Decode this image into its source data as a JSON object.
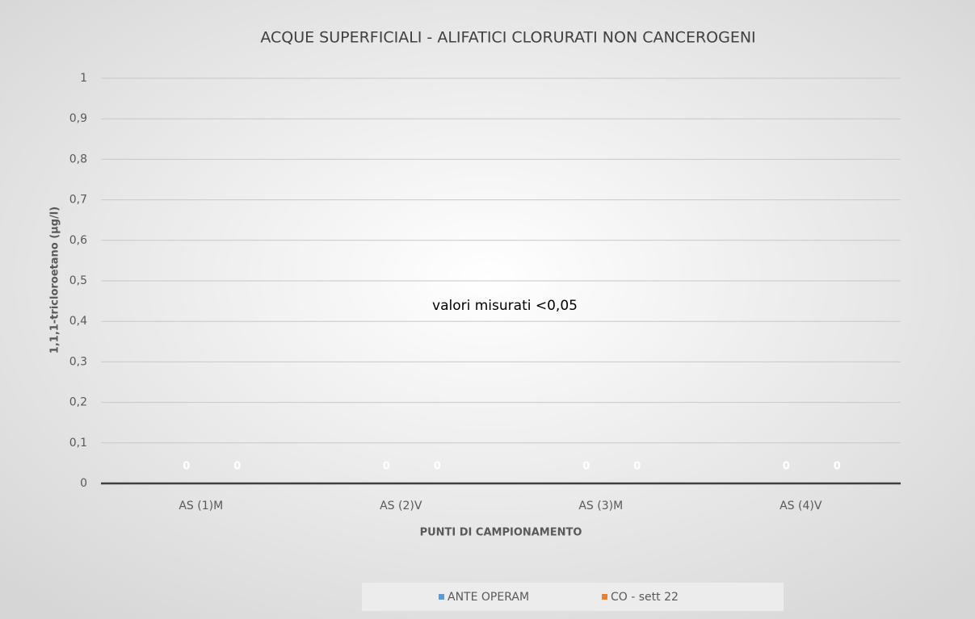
{
  "chart_data": {
    "type": "bar",
    "title": "ACQUE SUPERFICIALI - ALIFATICI CLORURATI NON CANCEROGENI",
    "ylabel": "1,1,1-tricloroetano (µg/l)",
    "xlabel": "PUNTI DI CAMPIONAMENTO",
    "annotation": "valori misurati <0,05",
    "categories": [
      "AS (1)M",
      "AS (2)V",
      "AS (3)M",
      "AS (4)V"
    ],
    "series": [
      {
        "name": "ANTE OPERAM",
        "color": "#5b9bd5",
        "values": [
          0,
          0,
          0,
          0
        ]
      },
      {
        "name": "CO - sett 22",
        "color": "#ed7d31",
        "values": [
          0,
          0,
          0,
          0
        ]
      }
    ],
    "ylim": [
      0,
      1
    ],
    "yticks": [
      0,
      {
        "value": 0.1,
        "label": "0,1"
      },
      {
        "value": 0.2,
        "label": "0,2"
      },
      {
        "value": 0.3,
        "label": "0,3"
      },
      {
        "value": 0.4,
        "label": "0,4"
      },
      {
        "value": 0.5,
        "label": "0,5"
      },
      {
        "value": 0.6,
        "label": "0,6"
      },
      {
        "value": 0.7,
        "label": "0,7"
      },
      {
        "value": 0.8,
        "label": "0,8"
      },
      {
        "value": 0.9,
        "label": "0,9"
      },
      1
    ],
    "grid": true,
    "legend": "bottom"
  }
}
